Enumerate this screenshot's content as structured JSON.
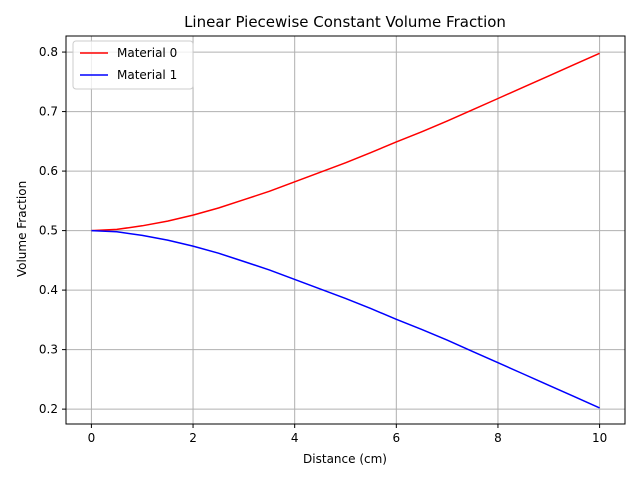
{
  "chart_data": {
    "type": "line",
    "title": "Linear Piecewise Constant Volume Fraction",
    "xlabel": "Distance (cm)",
    "ylabel": "Volume Fraction",
    "xlim": [
      -0.5,
      10.5
    ],
    "ylim": [
      0.175,
      0.827
    ],
    "xticks": [
      0,
      2,
      4,
      6,
      8,
      10
    ],
    "yticks": [
      0.2,
      0.3,
      0.4,
      0.5,
      0.6,
      0.7,
      0.8
    ],
    "grid": true,
    "legend_position": "top-left",
    "x": [
      0,
      0.5,
      1,
      1.5,
      2,
      2.5,
      3,
      3.5,
      4,
      4.5,
      5,
      5.5,
      6,
      6.5,
      7,
      7.5,
      8,
      8.5,
      9,
      9.5,
      10
    ],
    "series": [
      {
        "name": "Material 0",
        "color": "#ff0000",
        "values": [
          0.5,
          0.502,
          0.508,
          0.516,
          0.526,
          0.538,
          0.552,
          0.566,
          0.582,
          0.598,
          0.614,
          0.631,
          0.649,
          0.666,
          0.684,
          0.703,
          0.722,
          0.741,
          0.76,
          0.779,
          0.798
        ]
      },
      {
        "name": "Material 1",
        "color": "#0000ff",
        "values": [
          0.5,
          0.498,
          0.492,
          0.484,
          0.474,
          0.462,
          0.448,
          0.434,
          0.418,
          0.402,
          0.386,
          0.369,
          0.351,
          0.334,
          0.316,
          0.297,
          0.278,
          0.259,
          0.24,
          0.221,
          0.202
        ]
      }
    ]
  }
}
